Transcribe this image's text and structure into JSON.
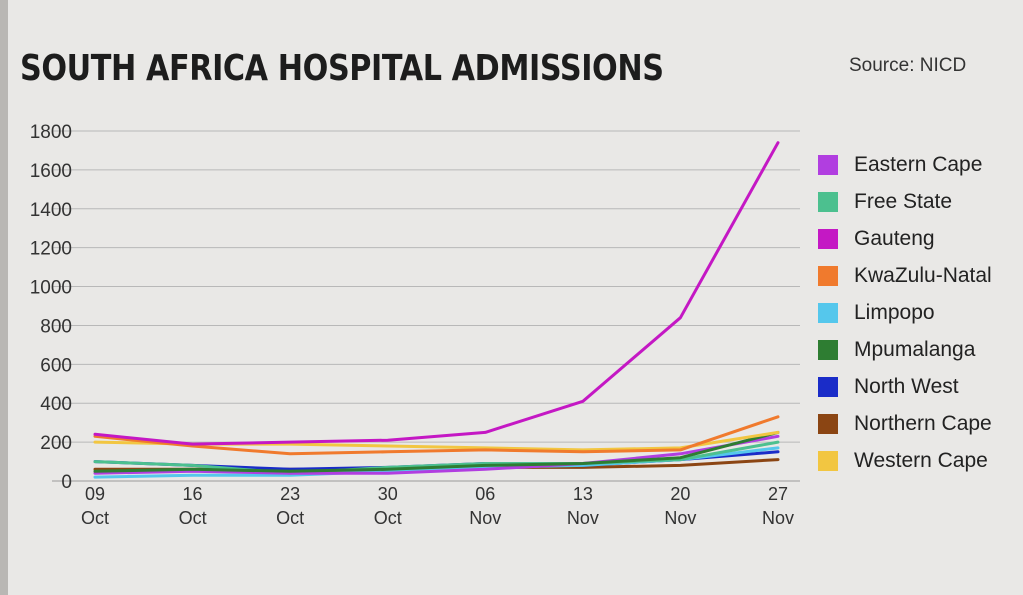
{
  "header": {
    "title": "SOUTH AFRICA HOSPITAL ADMISSIONS",
    "source": "Source: NICD"
  },
  "chart_data": {
    "type": "line",
    "title": "SOUTH AFRICA HOSPITAL ADMISSIONS",
    "xlabel": "",
    "ylabel": "",
    "ylim": [
      0,
      1800
    ],
    "yticks": [
      0,
      200,
      400,
      600,
      800,
      1000,
      1200,
      1400,
      1600,
      1800
    ],
    "grid": true,
    "legend_position": "right",
    "categories": [
      [
        "09",
        "Oct"
      ],
      [
        "16",
        "Oct"
      ],
      [
        "23",
        "Oct"
      ],
      [
        "30",
        "Oct"
      ],
      [
        "06",
        "Nov"
      ],
      [
        "13",
        "Nov"
      ],
      [
        "20",
        "Nov"
      ],
      [
        "27",
        "Nov"
      ]
    ],
    "series": [
      {
        "name": "Eastern Cape",
        "color": "#b13ee0",
        "values": [
          40,
          50,
          40,
          40,
          60,
          90,
          140,
          230
        ]
      },
      {
        "name": "Free State",
        "color": "#4cc08f",
        "values": [
          100,
          80,
          40,
          70,
          90,
          90,
          110,
          200
        ]
      },
      {
        "name": "Gauteng",
        "color": "#c418c4",
        "values": [
          240,
          190,
          200,
          210,
          250,
          410,
          840,
          1740
        ]
      },
      {
        "name": "KwaZulu-Natal",
        "color": "#f07a2d",
        "values": [
          230,
          180,
          140,
          150,
          160,
          150,
          160,
          330
        ]
      },
      {
        "name": "Limpopo",
        "color": "#55c7ec",
        "values": [
          20,
          30,
          30,
          50,
          70,
          80,
          110,
          170
        ]
      },
      {
        "name": "Mpumalanga",
        "color": "#2e7d32",
        "values": [
          50,
          60,
          50,
          60,
          80,
          90,
          120,
          250
        ]
      },
      {
        "name": "North West",
        "color": "#1a2cc8",
        "values": [
          100,
          80,
          60,
          70,
          90,
          80,
          110,
          150
        ]
      },
      {
        "name": "Northern Cape",
        "color": "#8b4513",
        "values": [
          60,
          60,
          60,
          60,
          70,
          70,
          80,
          110
        ]
      },
      {
        "name": "Western Cape",
        "color": "#f2c641",
        "values": [
          200,
          190,
          190,
          180,
          170,
          160,
          170,
          250
        ]
      }
    ]
  }
}
